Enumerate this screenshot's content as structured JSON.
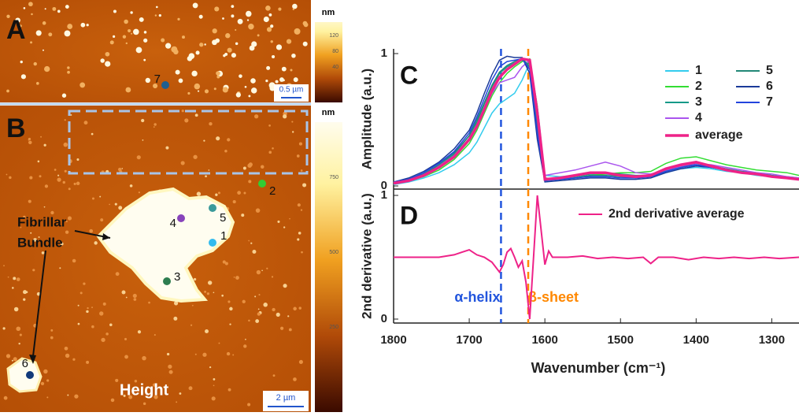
{
  "panels": [
    {
      "label": "A",
      "colorbar_unit": "nm",
      "colorbar_ticks": [
        "120",
        "80",
        "40"
      ],
      "scale_bar": "0.5 µm",
      "points": [
        "7"
      ]
    },
    {
      "label": "B",
      "colorbar_unit": "nm",
      "colorbar_ticks": [
        "750",
        "500",
        "250"
      ],
      "scale_bar": "2 µm",
      "points": [
        "1",
        "2",
        "3",
        "4",
        "5",
        "6"
      ],
      "annotation_lines": [
        "Fibrillar",
        "Bundle"
      ],
      "caption": "Height"
    }
  ],
  "chart_data": [
    {
      "type": "line",
      "panel_label": "C",
      "y_label": "Amplitude (a.u.)",
      "xlim": [
        1800,
        1264
      ],
      "ylim": [
        0,
        1
      ],
      "yticks": [
        0,
        1
      ],
      "x": [
        1800,
        1780,
        1760,
        1740,
        1720,
        1700,
        1690,
        1680,
        1670,
        1660,
        1650,
        1640,
        1630,
        1620,
        1610,
        1600,
        1580,
        1560,
        1540,
        1520,
        1500,
        1480,
        1460,
        1440,
        1420,
        1400,
        1380,
        1360,
        1340,
        1320,
        1300,
        1280,
        1264
      ],
      "markers": [
        {
          "x": 1658,
          "color": "#2255dd"
        },
        {
          "x": 1622,
          "color": "#ff8800"
        }
      ],
      "series": [
        {
          "name": "1",
          "color": "#33ccee",
          "values": [
            0.01,
            0.03,
            0.06,
            0.1,
            0.16,
            0.25,
            0.33,
            0.44,
            0.55,
            0.62,
            0.66,
            0.7,
            0.8,
            0.93,
            0.6,
            0.08,
            0.07,
            0.08,
            0.09,
            0.09,
            0.07,
            0.06,
            0.07,
            0.1,
            0.13,
            0.14,
            0.13,
            0.11,
            0.1,
            0.08,
            0.07,
            0.06,
            0.05
          ]
        },
        {
          "name": "2",
          "color": "#33dd33",
          "values": [
            0.02,
            0.04,
            0.07,
            0.12,
            0.2,
            0.32,
            0.42,
            0.55,
            0.68,
            0.78,
            0.85,
            0.9,
            0.94,
            0.96,
            0.6,
            0.06,
            0.05,
            0.06,
            0.08,
            0.09,
            0.1,
            0.1,
            0.11,
            0.17,
            0.21,
            0.22,
            0.19,
            0.16,
            0.14,
            0.12,
            0.11,
            0.1,
            0.08
          ]
        },
        {
          "name": "3",
          "color": "#119988",
          "values": [
            0.02,
            0.05,
            0.09,
            0.15,
            0.24,
            0.38,
            0.48,
            0.62,
            0.75,
            0.85,
            0.9,
            0.93,
            0.95,
            0.92,
            0.5,
            0.05,
            0.06,
            0.07,
            0.09,
            0.1,
            0.09,
            0.08,
            0.08,
            0.12,
            0.15,
            0.16,
            0.15,
            0.13,
            0.11,
            0.1,
            0.08,
            0.07,
            0.06
          ]
        },
        {
          "name": "4",
          "color": "#aa55ee",
          "values": [
            0.02,
            0.04,
            0.08,
            0.15,
            0.23,
            0.36,
            0.46,
            0.58,
            0.7,
            0.78,
            0.8,
            0.82,
            0.9,
            0.95,
            0.58,
            0.08,
            0.1,
            0.12,
            0.15,
            0.18,
            0.15,
            0.1,
            0.09,
            0.12,
            0.15,
            0.17,
            0.16,
            0.14,
            0.12,
            0.1,
            0.09,
            0.07,
            0.06
          ]
        },
        {
          "name": "5",
          "color": "#228877",
          "values": [
            0.02,
            0.05,
            0.09,
            0.16,
            0.25,
            0.38,
            0.5,
            0.63,
            0.76,
            0.86,
            0.91,
            0.94,
            0.96,
            0.9,
            0.45,
            0.04,
            0.05,
            0.06,
            0.08,
            0.08,
            0.07,
            0.06,
            0.07,
            0.11,
            0.14,
            0.16,
            0.14,
            0.12,
            0.1,
            0.09,
            0.07,
            0.06,
            0.05
          ]
        },
        {
          "name": "6",
          "color": "#1a3a99",
          "values": [
            0.03,
            0.06,
            0.11,
            0.18,
            0.28,
            0.42,
            0.55,
            0.7,
            0.84,
            0.95,
            0.98,
            0.97,
            0.97,
            0.85,
            0.35,
            0.03,
            0.04,
            0.05,
            0.06,
            0.06,
            0.05,
            0.05,
            0.06,
            0.1,
            0.13,
            0.15,
            0.14,
            0.12,
            0.1,
            0.09,
            0.07,
            0.06,
            0.05
          ]
        },
        {
          "name": "7",
          "color": "#2244dd",
          "values": [
            0.03,
            0.05,
            0.1,
            0.17,
            0.26,
            0.4,
            0.52,
            0.66,
            0.8,
            0.9,
            0.94,
            0.95,
            0.96,
            0.88,
            0.4,
            0.04,
            0.05,
            0.06,
            0.07,
            0.07,
            0.06,
            0.06,
            0.07,
            0.11,
            0.14,
            0.16,
            0.14,
            0.12,
            0.1,
            0.09,
            0.07,
            0.06,
            0.05
          ]
        },
        {
          "name": "average",
          "color": "#ee2288",
          "values": [
            0.02,
            0.04,
            0.08,
            0.14,
            0.22,
            0.35,
            0.45,
            0.58,
            0.72,
            0.82,
            0.88,
            0.92,
            0.96,
            0.95,
            0.55,
            0.05,
            0.06,
            0.08,
            0.1,
            0.1,
            0.08,
            0.07,
            0.08,
            0.13,
            0.16,
            0.18,
            0.15,
            0.12,
            0.1,
            0.09,
            0.07,
            0.06,
            0.05
          ]
        }
      ]
    },
    {
      "type": "line",
      "panel_label": "D",
      "y_label": "2nd derivative (a.u.)",
      "x_label": "Wavenumber (cm⁻¹)",
      "xlim": [
        1800,
        1264
      ],
      "ylim": [
        0,
        1
      ],
      "yticks": [
        0,
        1
      ],
      "xticks": [
        1800,
        1700,
        1600,
        1500,
        1400,
        1300
      ],
      "x": [
        1800,
        1780,
        1760,
        1740,
        1720,
        1710,
        1700,
        1690,
        1680,
        1670,
        1660,
        1655,
        1650,
        1645,
        1640,
        1635,
        1630,
        1625,
        1620,
        1615,
        1610,
        1605,
        1600,
        1595,
        1590,
        1570,
        1550,
        1530,
        1510,
        1490,
        1470,
        1460,
        1450,
        1430,
        1410,
        1390,
        1370,
        1350,
        1330,
        1310,
        1290,
        1264
      ],
      "markers": [
        {
          "x": 1658,
          "color": "#2255dd",
          "label": "α-helix"
        },
        {
          "x": 1622,
          "color": "#ff8800",
          "label": "β-sheet"
        }
      ],
      "series": [
        {
          "name": "2nd derivative average",
          "color": "#ee2288",
          "values": [
            0.5,
            0.5,
            0.5,
            0.5,
            0.52,
            0.54,
            0.56,
            0.52,
            0.5,
            0.46,
            0.38,
            0.44,
            0.54,
            0.57,
            0.5,
            0.42,
            0.47,
            0.3,
            0.0,
            0.5,
            1.0,
            0.72,
            0.44,
            0.55,
            0.5,
            0.5,
            0.51,
            0.49,
            0.5,
            0.49,
            0.5,
            0.45,
            0.5,
            0.5,
            0.48,
            0.5,
            0.49,
            0.5,
            0.49,
            0.5,
            0.49,
            0.5
          ]
        }
      ]
    }
  ]
}
